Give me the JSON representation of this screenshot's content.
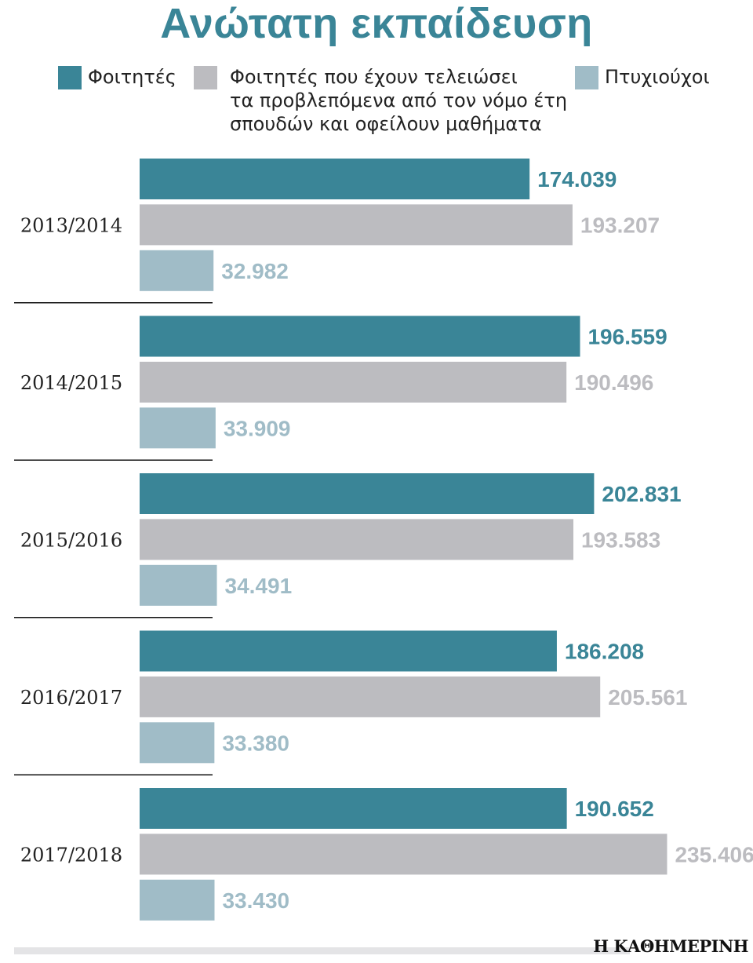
{
  "chart_data": {
    "type": "bar",
    "orientation": "horizontal",
    "title": "Ανώτατη εκπαίδευση",
    "categories": [
      "2013/2014",
      "2014/2015",
      "2015/2016",
      "2016/2017",
      "2017/2018"
    ],
    "series": [
      {
        "name": "Φοιτητές",
        "name_lines": [
          "Φοιτητές"
        ],
        "color": "#3a8597",
        "label_color": "#3a8597",
        "values": [
          174039,
          196559,
          202831,
          186208,
          190652
        ],
        "labels": [
          "174.039",
          "196.559",
          "202.831",
          "186.208",
          "190.652"
        ]
      },
      {
        "name": "Φοιτητές που έχουν τελειώσει τα προβλεπόμενα από τον νόμο έτη σπουδών και οφείλουν μαθήματα",
        "name_lines": [
          "Φοιτητές που έχουν τελειώσει",
          "τα προβλεπόμενα από τον νόμο έτη",
          "σπουδών και οφείλουν μαθήματα"
        ],
        "color": "#bcbcc0",
        "label_color": "#bcbcc0",
        "values": [
          193207,
          190496,
          193583,
          205561,
          235406
        ],
        "labels": [
          "193.207",
          "190.496",
          "193.583",
          "205.561",
          "235.406"
        ]
      },
      {
        "name": "Πτυχιούχοι",
        "name_lines": [
          "Πτυχιούχοι"
        ],
        "color": "#a0bcc7",
        "label_color": "#a0bcc7",
        "values": [
          32982,
          33909,
          34491,
          33380,
          33430
        ],
        "labels": [
          "32.982",
          "33.909",
          "34.491",
          "33.380",
          "33.430"
        ]
      }
    ],
    "legend": "top",
    "grid": false
  },
  "footer": {
    "brand": "Η ΚΑΘΗΜΕΡΙΝΗ"
  }
}
